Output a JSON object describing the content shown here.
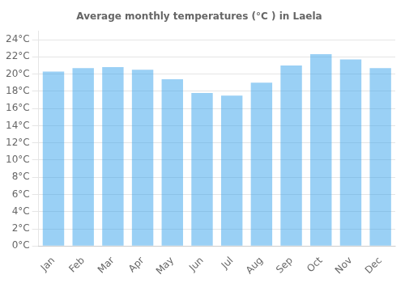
{
  "chart_data": {
    "type": "bar",
    "title": "Average monthly temperatures (°C ) in Laela",
    "categories": [
      "Jan",
      "Feb",
      "Mar",
      "Apr",
      "May",
      "Jun",
      "Jul",
      "Aug",
      "Sep",
      "Oct",
      "Nov",
      "Dec"
    ],
    "values": [
      20.3,
      20.7,
      20.8,
      20.5,
      19.4,
      17.8,
      17.5,
      19.0,
      21.0,
      22.3,
      21.7,
      20.7
    ],
    "ylim": [
      0,
      25
    ],
    "yticks": [
      {
        "value": 0,
        "label": "0°C"
      },
      {
        "value": 2,
        "label": "2°C"
      },
      {
        "value": 4,
        "label": "4°C"
      },
      {
        "value": 6,
        "label": "6°C"
      },
      {
        "value": 8,
        "label": "8°C"
      },
      {
        "value": 10,
        "label": "10°C"
      },
      {
        "value": 12,
        "label": "12°C"
      },
      {
        "value": 14,
        "label": "14°C"
      },
      {
        "value": 16,
        "label": "16°C"
      },
      {
        "value": 18,
        "label": "18°C"
      },
      {
        "value": 20,
        "label": "20°C"
      },
      {
        "value": 22,
        "label": "22°C"
      },
      {
        "value": 24,
        "label": "24°C"
      }
    ],
    "grid": true
  }
}
